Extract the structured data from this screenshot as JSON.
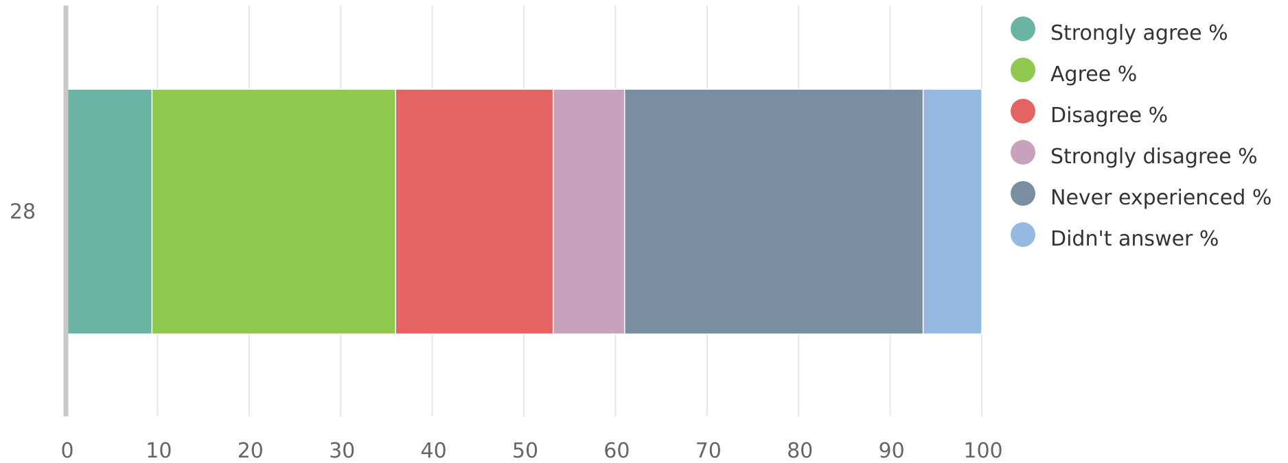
{
  "chart_data": {
    "type": "bar",
    "orientation": "horizontal",
    "stacked": true,
    "categories": [
      "28"
    ],
    "series": [
      {
        "name": "Strongly agree %",
        "values": [
          9.4
        ],
        "color": "#6bb3a3"
      },
      {
        "name": "Agree %",
        "values": [
          26.6
        ],
        "color": "#90c850"
      },
      {
        "name": "Disagree %",
        "values": [
          17.2
        ],
        "color": "#e46464"
      },
      {
        "name": "Strongly disagree %",
        "values": [
          7.8
        ],
        "color": "#c8a2bd"
      },
      {
        "name": "Never experienced %",
        "values": [
          32.6
        ],
        "color": "#7a8ea2"
      },
      {
        "name": "Didn't answer %",
        "values": [
          6.4
        ],
        "color": "#96b9e2"
      }
    ],
    "xlim": [
      0,
      100
    ],
    "xticks": [
      "0",
      "10",
      "20",
      "30",
      "40",
      "50",
      "60",
      "70",
      "80",
      "90",
      "100"
    ],
    "grid": true,
    "legend_position": "top-right",
    "title": "",
    "xlabel": "",
    "ylabel": ""
  }
}
